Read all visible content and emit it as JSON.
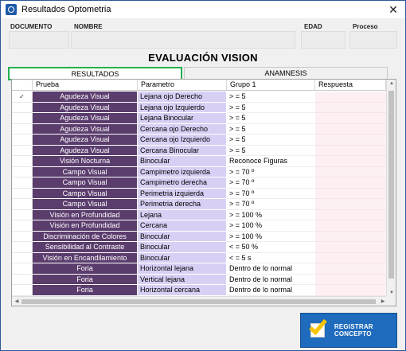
{
  "window": {
    "title": "Resultados Optometria",
    "close_glyph": "✕",
    "app_icon": "app-icon"
  },
  "fields": {
    "documento": {
      "label": "DOCUMENTO",
      "value": ""
    },
    "nombre": {
      "label": "NOMBRE",
      "value": ""
    },
    "edad": {
      "label": "EDAD",
      "value": ""
    },
    "proceso": {
      "label": "Proceso",
      "value": ""
    }
  },
  "page_title": "EVALUACIÓN VISION",
  "tabs": [
    {
      "label": "RESULTADOS",
      "active": true
    },
    {
      "label": "ANAMNESIS",
      "active": false
    }
  ],
  "grid": {
    "columns": [
      "",
      "Prueba",
      "Parametro",
      "Grupo 1",
      "Respuesta"
    ],
    "rows": [
      {
        "sel": "✓",
        "prueba": "Agudeza Visual",
        "parametro": "Lejana ojo Derecho",
        "grupo": "> = 5",
        "respuesta": ""
      },
      {
        "sel": "",
        "prueba": "Agudeza Visual",
        "parametro": "Lejana ojo Izquierdo",
        "grupo": "> = 5",
        "respuesta": ""
      },
      {
        "sel": "",
        "prueba": "Agudeza Visual",
        "parametro": "Lejana Binocular",
        "grupo": "> = 5",
        "respuesta": ""
      },
      {
        "sel": "",
        "prueba": "Agudeza Visual",
        "parametro": "Cercana ojo Derecho",
        "grupo": "> = 5",
        "respuesta": ""
      },
      {
        "sel": "",
        "prueba": "Agudeza Visual",
        "parametro": "Cercana ojo Izquierdo",
        "grupo": "> = 5",
        "respuesta": ""
      },
      {
        "sel": "",
        "prueba": "Agudeza Visual",
        "parametro": "Cercana Binocular",
        "grupo": "> = 5",
        "respuesta": ""
      },
      {
        "sel": "",
        "prueba": "Visión Nocturna",
        "parametro": "Binocular",
        "grupo": "Reconoce Figuras",
        "respuesta": ""
      },
      {
        "sel": "",
        "prueba": "Campo Visual",
        "parametro": "Campimetro izquierda",
        "grupo": "> = 70 º",
        "respuesta": ""
      },
      {
        "sel": "",
        "prueba": "Campo Visual",
        "parametro": "Campimetro derecha",
        "grupo": "> = 70 º",
        "respuesta": ""
      },
      {
        "sel": "",
        "prueba": "Campo Visual",
        "parametro": "Perimetria izquierda",
        "grupo": "> = 70 º",
        "respuesta": ""
      },
      {
        "sel": "",
        "prueba": "Campo Visual",
        "parametro": "Perimetria derecha",
        "grupo": "> = 70 º",
        "respuesta": ""
      },
      {
        "sel": "",
        "prueba": "Visión en Profundidad",
        "parametro": "Lejana",
        "grupo": "> = 100 %",
        "respuesta": ""
      },
      {
        "sel": "",
        "prueba": "Visión en Profundidad",
        "parametro": "Cercana",
        "grupo": "> = 100 %",
        "respuesta": ""
      },
      {
        "sel": "",
        "prueba": "Discriminación de Colores",
        "parametro": "Binocular",
        "grupo": "> = 100 %",
        "respuesta": ""
      },
      {
        "sel": "",
        "prueba": "Sensibilidad al Contraste",
        "parametro": "Binocular",
        "grupo": "< = 50 %",
        "respuesta": ""
      },
      {
        "sel": "",
        "prueba": "Visión en Encandilamiento",
        "parametro": "Binocular",
        "grupo": "< = 5 s",
        "respuesta": ""
      },
      {
        "sel": "",
        "prueba": "Foria",
        "parametro": "Horizontal lejana",
        "grupo": "Dentro de lo normal",
        "respuesta": ""
      },
      {
        "sel": "",
        "prueba": "Foria",
        "parametro": "Vertical lejana",
        "grupo": "Dentro de lo normal",
        "respuesta": ""
      },
      {
        "sel": "",
        "prueba": "Foria",
        "parametro": "Horizontal cercana",
        "grupo": "Dentro de lo normal",
        "respuesta": ""
      }
    ]
  },
  "register_button": {
    "label": "REGISTRAR CONCEPTO",
    "icon": "checkmark-icon"
  },
  "colors": {
    "prueba_bg": "#5b3d6d",
    "parametro_bg": "#d8d0f4",
    "respuesta_bg": "#fdf0f3",
    "active_tab_border": "#23b14d",
    "button_bg": "#1f6bbd",
    "check_color": "#f5c400"
  }
}
